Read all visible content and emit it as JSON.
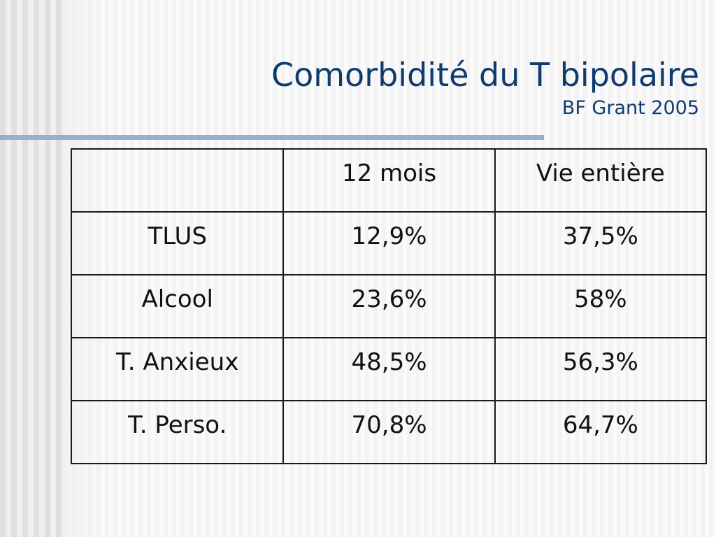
{
  "slide": {
    "title": "Comorbidité du T bipolaire",
    "subtitle": "BF Grant 2005"
  },
  "table": {
    "headers": [
      "",
      "12 mois",
      "Vie entière"
    ],
    "rows": [
      [
        "TLUS",
        "12,9%",
        "37,5%"
      ],
      [
        "Alcool",
        "23,6%",
        "58%"
      ],
      [
        "T. Anxieux",
        "48,5%",
        "56,3%"
      ],
      [
        "T. Perso.",
        "70,8%",
        "64,7%"
      ]
    ]
  },
  "colors": {
    "title": "#0f3b6e",
    "rule": "#98b0cb",
    "border": "#1a1a1a"
  }
}
